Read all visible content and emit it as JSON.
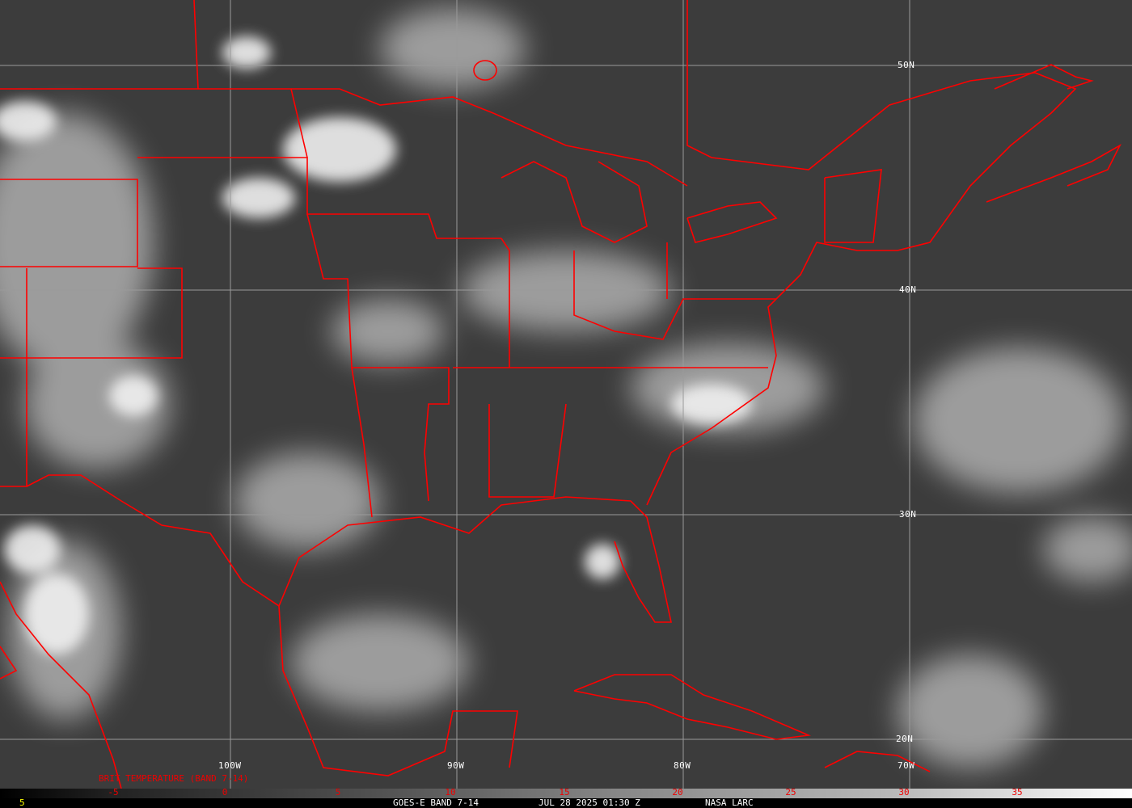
{
  "map": {
    "lat_labels": [
      "50N",
      "40N",
      "30N",
      "20N"
    ],
    "lon_labels": [
      "100W",
      "90W",
      "80W",
      "70W"
    ],
    "overlay_color": "#ff0000",
    "product_label": "BRIT TEMPERATURE (BAND 7-14)"
  },
  "colorbar": {
    "ticks": [
      "-5",
      "0",
      "5",
      "10",
      "15",
      "20",
      "25",
      "30",
      "35"
    ]
  },
  "footer": {
    "frame_number": "5",
    "satellite": "GOES-E BAND 7-14",
    "datetime": "JUL 28 2025 01:30 Z",
    "source": "NASA LARC"
  }
}
